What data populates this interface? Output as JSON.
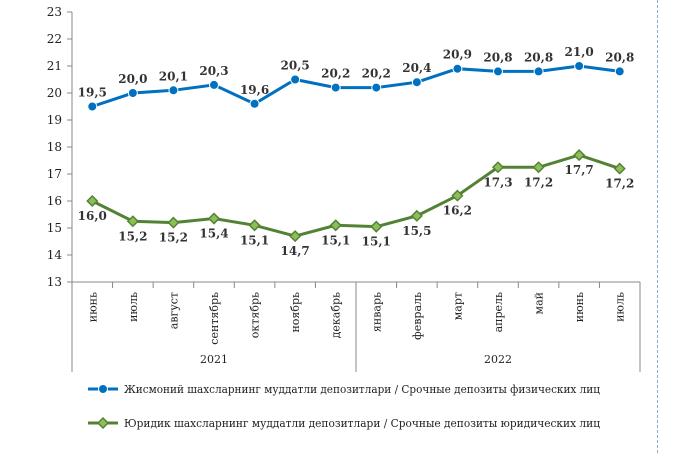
{
  "chart_data": {
    "type": "line",
    "categories": [
      "июнь",
      "июль",
      "август",
      "сентябрь",
      "октябрь",
      "ноябрь",
      "декабрь",
      "январь",
      "февраль",
      "март",
      "апрель",
      "май",
      "июнь",
      "июль"
    ],
    "years": [
      {
        "label": "2021",
        "from": 0,
        "to": 6
      },
      {
        "label": "2022",
        "from": 7,
        "to": 13
      }
    ],
    "series": [
      {
        "name": "Жисмоний шахсларнинг муддатли депозитлари / Срочные депозиты физических лиц",
        "color": "#0070c0",
        "marker": "circle",
        "values": [
          19.5,
          20.0,
          20.1,
          20.3,
          19.6,
          20.5,
          20.2,
          20.2,
          20.4,
          20.9,
          20.8,
          20.8,
          21.0,
          20.8
        ],
        "labels": [
          "19,5",
          "20,0",
          "20,1",
          "20,3",
          "19,6",
          "20,5",
          "20,2",
          "20,2",
          "20,4",
          "20,9",
          "20,8",
          "20,8",
          "21,0",
          "20,8"
        ]
      },
      {
        "name": "Юридик шахсларнинг муддатли депозитлари / Срочные депозиты юридических лиц",
        "color": "#548235",
        "marker": "diamond",
        "values": [
          16.0,
          15.25,
          15.2,
          15.35,
          15.1,
          14.7,
          15.1,
          15.05,
          15.45,
          16.2,
          17.25,
          17.25,
          17.7,
          17.2
        ],
        "labels": [
          "16,0",
          "15,2",
          "15,2",
          "15,4",
          "15,1",
          "14,7",
          "15,1",
          "15,1",
          "15,5",
          "16,2",
          "17,3",
          "17,2",
          "17,7",
          "17,2"
        ]
      }
    ],
    "ylim": [
      13,
      23
    ],
    "yticks": [
      "13",
      "14",
      "15",
      "16",
      "17",
      "18",
      "19",
      "20",
      "21",
      "22",
      "23"
    ],
    "grid": false,
    "legend_position": "bottom"
  }
}
